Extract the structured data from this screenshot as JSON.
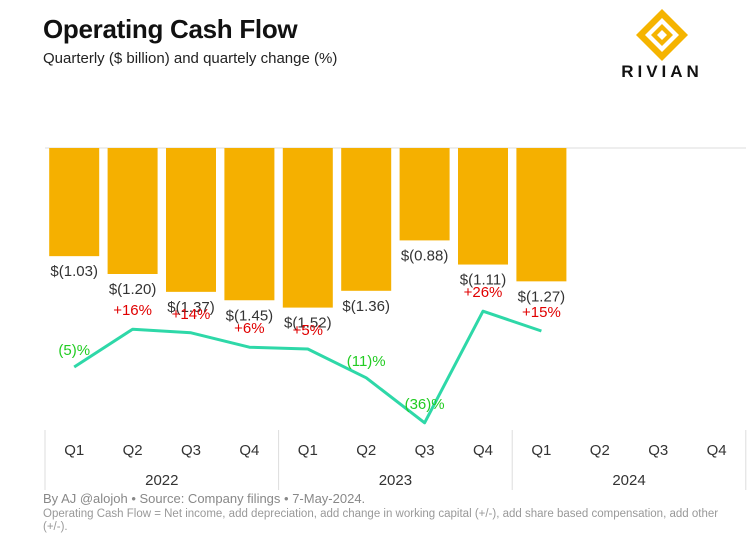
{
  "header": {
    "title": "Operating Cash Flow",
    "subtitle": "Quarterly ($ billion) and quartely change (%)"
  },
  "logo": {
    "icon": "rivian-diamond-icon",
    "wordmark": "RIVIAN",
    "color": "#F5B400"
  },
  "footer": {
    "source": "By AJ @alojoh • Source: Company filings • 7-May-2024.",
    "note": "Operating Cash Flow = Net income, add depreciation, add change in working capital (+/-), add share based compensation, add other (+/-)."
  },
  "colors": {
    "bar": "#F5B000",
    "line": "#2ED8A8",
    "positive": "#E00000",
    "negative": "#22CC22",
    "tick": "#333333",
    "grid": "#DDDDDD"
  },
  "chart_data": {
    "type": "bar",
    "categories": [
      "Q1",
      "Q2",
      "Q3",
      "Q4",
      "Q1",
      "Q2",
      "Q3",
      "Q4",
      "Q1",
      "Q2",
      "Q3",
      "Q4"
    ],
    "groups": [
      {
        "label": "2022",
        "span": 4
      },
      {
        "label": "2023",
        "span": 4
      },
      {
        "label": "2024",
        "span": 4
      }
    ],
    "series": [
      {
        "type": "bar",
        "values": [
          -1.03,
          -1.2,
          -1.37,
          -1.45,
          -1.52,
          -1.36,
          -0.88,
          -1.11,
          -1.27,
          null,
          null,
          null
        ],
        "labels": [
          "$(1.03)",
          "$(1.20)",
          "$(1.37)",
          "$(1.45)",
          "$(1.52)",
          "$(1.36)",
          "$(0.88)",
          "$(1.11)",
          "$(1.27)",
          "",
          "",
          ""
        ]
      },
      {
        "type": "line",
        "values": [
          -5,
          16,
          14,
          6,
          5,
          -11,
          -36,
          26,
          15,
          null,
          null,
          null
        ],
        "labels": [
          "(5)%",
          "+16%",
          "+14%",
          "+6%",
          "+5%",
          "(11)%",
          "(36)%",
          "+26%",
          "+15%",
          "",
          "",
          ""
        ]
      }
    ],
    "ylim": [
      -1.6,
      0
    ]
  }
}
